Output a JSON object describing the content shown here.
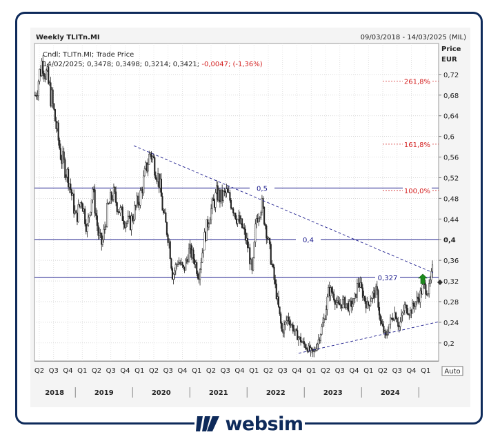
{
  "header": {
    "title": "Weekly TLITn.MI",
    "date_range": "09/03/2018 - 14/03/2025 (MIL)"
  },
  "info": {
    "line1": "Cndl; TLITn.MI; Trade Price",
    "line2_prefix": "14/02/2025; 0,3478; 0,3498; 0,3214; 0,3421; ",
    "line2_change": "-0,0047; (-1,36%)"
  },
  "axis": {
    "price_label": "Price",
    "currency_label": "EUR",
    "auto_label": "Auto"
  },
  "brand": {
    "name": "websim"
  },
  "colors": {
    "navy": "#0e2a5a",
    "fibo": "#d42020",
    "level": "#1a1a8c",
    "arrow": "#1c8a1c"
  },
  "chart_data": {
    "type": "candlestick",
    "title": "Weekly TLITn.MI",
    "ylabel": "Price EUR",
    "ylim": [
      0.165,
      0.78
    ],
    "y_ticks": [
      "0,2",
      "0,24",
      "0,28",
      "0,32",
      "0,36",
      "0,4",
      "0,44",
      "0,48",
      "0,52",
      "0,56",
      "0,6",
      "0,64",
      "0,68",
      "0,72"
    ],
    "quarter_labels": [
      "Q2",
      "Q3",
      "Q4",
      "Q1",
      "Q2",
      "Q3",
      "Q4",
      "Q1",
      "Q2",
      "Q3",
      "Q4",
      "Q1",
      "Q2",
      "Q3",
      "Q4",
      "Q1",
      "Q2",
      "Q3",
      "Q4",
      "Q1",
      "Q2",
      "Q3",
      "Q4",
      "Q1",
      "Q2",
      "Q3",
      "Q4",
      "Q1"
    ],
    "year_labels": [
      "2018",
      "2019",
      "2020",
      "2021",
      "2022",
      "2023",
      "2024"
    ],
    "last_close": 0.3421,
    "horizontal_levels": [
      {
        "label": "0,5",
        "value": 0.5
      },
      {
        "label": "0,4",
        "value": 0.4
      },
      {
        "label": "0,327",
        "value": 0.327
      }
    ],
    "fibonacci": [
      {
        "label": "261,8%",
        "value": 0.707
      },
      {
        "label": "161,8%",
        "value": 0.585
      },
      {
        "label": "100,0%",
        "value": 0.495
      }
    ],
    "trendlines": [
      {
        "from": [
          "2019-Q4",
          0.58
        ],
        "to": [
          "2025-Q1",
          0.33
        ]
      },
      {
        "from": [
          "2022-Q4",
          0.18
        ],
        "to": [
          "2025-Q1",
          0.24
        ]
      }
    ],
    "price_path": [
      [
        0,
        0.68
      ],
      [
        0.02,
        0.75
      ],
      [
        0.045,
        0.67
      ],
      [
        0.07,
        0.56
      ],
      [
        0.09,
        0.52
      ],
      [
        0.11,
        0.44
      ],
      [
        0.125,
        0.48
      ],
      [
        0.14,
        0.42
      ],
      [
        0.155,
        0.5
      ],
      [
        0.17,
        0.41
      ],
      [
        0.18,
        0.39
      ],
      [
        0.195,
        0.46
      ],
      [
        0.21,
        0.49
      ],
      [
        0.225,
        0.46
      ],
      [
        0.24,
        0.44
      ],
      [
        0.255,
        0.43
      ],
      [
        0.27,
        0.46
      ],
      [
        0.285,
        0.49
      ],
      [
        0.3,
        0.54
      ],
      [
        0.31,
        0.57
      ],
      [
        0.32,
        0.55
      ],
      [
        0.335,
        0.51
      ],
      [
        0.345,
        0.45
      ],
      [
        0.36,
        0.4
      ],
      [
        0.37,
        0.33
      ],
      [
        0.385,
        0.36
      ],
      [
        0.4,
        0.34
      ],
      [
        0.415,
        0.38
      ],
      [
        0.43,
        0.36
      ],
      [
        0.44,
        0.33
      ],
      [
        0.455,
        0.4
      ],
      [
        0.47,
        0.45
      ],
      [
        0.49,
        0.49
      ],
      [
        0.5,
        0.48
      ],
      [
        0.515,
        0.49
      ],
      [
        0.53,
        0.47
      ],
      [
        0.545,
        0.44
      ],
      [
        0.56,
        0.42
      ],
      [
        0.575,
        0.38
      ],
      [
        0.585,
        0.33
      ],
      [
        0.595,
        0.44
      ],
      [
        0.61,
        0.47
      ],
      [
        0.625,
        0.41
      ],
      [
        0.64,
        0.34
      ],
      [
        0.655,
        0.27
      ],
      [
        0.665,
        0.22
      ],
      [
        0.68,
        0.25
      ],
      [
        0.7,
        0.22
      ],
      [
        0.72,
        0.2
      ],
      [
        0.74,
        0.185
      ],
      [
        0.75,
        0.18
      ],
      [
        0.765,
        0.21
      ],
      [
        0.78,
        0.25
      ],
      [
        0.79,
        0.3
      ],
      [
        0.8,
        0.3
      ],
      [
        0.815,
        0.27
      ],
      [
        0.83,
        0.28
      ],
      [
        0.845,
        0.27
      ],
      [
        0.86,
        0.28
      ],
      [
        0.87,
        0.32
      ],
      [
        0.88,
        0.3
      ],
      [
        0.895,
        0.27
      ],
      [
        0.905,
        0.29
      ],
      [
        0.92,
        0.3
      ],
      [
        0.93,
        0.24
      ],
      [
        0.945,
        0.21
      ],
      [
        0.955,
        0.24
      ],
      [
        0.97,
        0.26
      ],
      [
        0.98,
        0.23
      ],
      [
        0.995,
        0.27
      ],
      [
        1.01,
        0.26
      ],
      [
        1.025,
        0.28
      ],
      [
        1.035,
        0.29
      ],
      [
        1.045,
        0.31
      ],
      [
        1.06,
        0.3
      ],
      [
        1.07,
        0.34
      ]
    ]
  }
}
